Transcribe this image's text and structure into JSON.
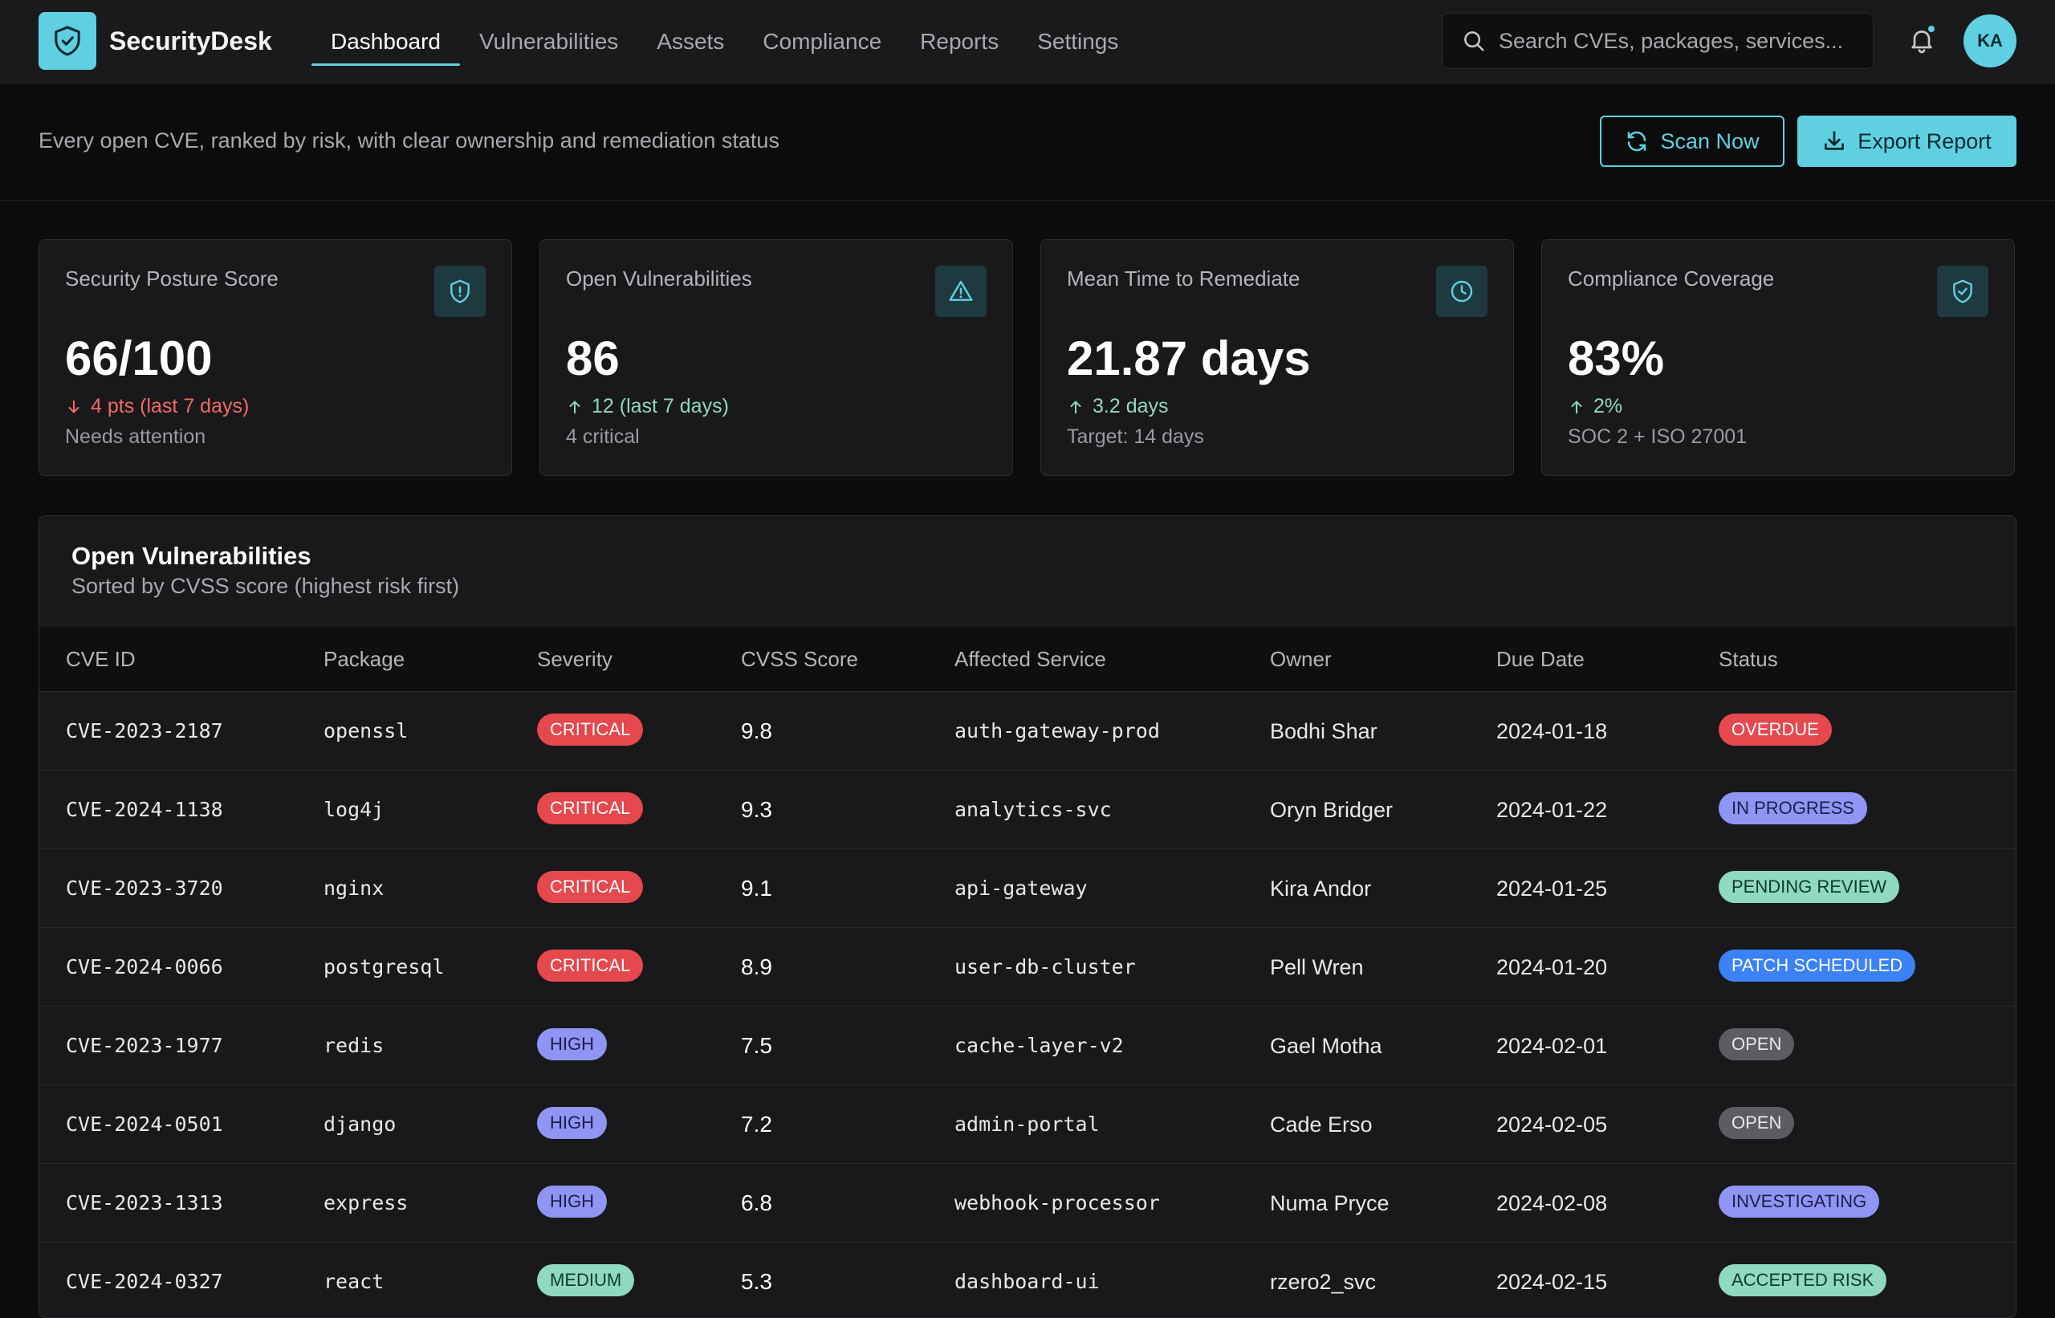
{
  "app": {
    "name": "SecurityDesk"
  },
  "nav": {
    "items": [
      {
        "label": "Dashboard",
        "active": true
      },
      {
        "label": "Vulnerabilities",
        "active": false
      },
      {
        "label": "Assets",
        "active": false
      },
      {
        "label": "Compliance",
        "active": false
      },
      {
        "label": "Reports",
        "active": false
      },
      {
        "label": "Settings",
        "active": false
      }
    ]
  },
  "search": {
    "placeholder": "Search CVEs, packages, services...",
    "value": ""
  },
  "user": {
    "initials": "KA",
    "has_notifications": true
  },
  "header": {
    "subtitle": "Every open CVE, ranked by risk, with clear ownership and remediation status",
    "scan_label": "Scan Now",
    "export_label": "Export Report"
  },
  "kpis": [
    {
      "label": "Security Posture Score",
      "icon": "shield-alert-icon",
      "value": "66/100",
      "delta": "4 pts (last 7 days)",
      "direction": "down",
      "tone": "bad",
      "note": "Needs attention"
    },
    {
      "label": "Open Vulnerabilities",
      "icon": "warning-triangle-icon",
      "value": "86",
      "delta": "12 (last 7 days)",
      "direction": "up",
      "tone": "good",
      "note": "4 critical"
    },
    {
      "label": "Mean Time to Remediate",
      "icon": "clock-icon",
      "value": "21.87 days",
      "delta": "3.2 days",
      "direction": "up",
      "tone": "good",
      "note": "Target: 14 days"
    },
    {
      "label": "Compliance Coverage",
      "icon": "shield-check-icon",
      "value": "83%",
      "delta": "2%",
      "direction": "up",
      "tone": "good",
      "note": "SOC 2 + ISO 27001"
    }
  ],
  "table": {
    "title": "Open Vulnerabilities",
    "subtitle": "Sorted by CVSS score (highest risk first)",
    "columns": [
      "CVE ID",
      "Package",
      "Severity",
      "CVSS Score",
      "Affected Service",
      "Owner",
      "Due Date",
      "Status"
    ],
    "rows": [
      {
        "cve": "CVE-2023-2187",
        "package": "openssl",
        "severity": "CRITICAL",
        "cvss": "9.8",
        "service": "auth-gateway-prod",
        "owner": "Bodhi Shar",
        "due": "2024-01-18",
        "status": "OVERDUE"
      },
      {
        "cve": "CVE-2024-1138",
        "package": "log4j",
        "severity": "CRITICAL",
        "cvss": "9.3",
        "service": "analytics-svc",
        "owner": "Oryn Bridger",
        "due": "2024-01-22",
        "status": "IN PROGRESS"
      },
      {
        "cve": "CVE-2023-3720",
        "package": "nginx",
        "severity": "CRITICAL",
        "cvss": "9.1",
        "service": "api-gateway",
        "owner": "Kira Andor",
        "due": "2024-01-25",
        "status": "PENDING REVIEW"
      },
      {
        "cve": "CVE-2024-0066",
        "package": "postgresql",
        "severity": "CRITICAL",
        "cvss": "8.9",
        "service": "user-db-cluster",
        "owner": "Pell Wren",
        "due": "2024-01-20",
        "status": "PATCH SCHEDULED"
      },
      {
        "cve": "CVE-2023-1977",
        "package": "redis",
        "severity": "HIGH",
        "cvss": "7.5",
        "service": "cache-layer-v2",
        "owner": "Gael Motha",
        "due": "2024-02-01",
        "status": "OPEN"
      },
      {
        "cve": "CVE-2024-0501",
        "package": "django",
        "severity": "HIGH",
        "cvss": "7.2",
        "service": "admin-portal",
        "owner": "Cade Erso",
        "due": "2024-02-05",
        "status": "OPEN"
      },
      {
        "cve": "CVE-2023-1313",
        "package": "express",
        "severity": "HIGH",
        "cvss": "6.8",
        "service": "webhook-processor",
        "owner": "Numa Pryce",
        "due": "2024-02-08",
        "status": "INVESTIGATING"
      },
      {
        "cve": "CVE-2024-0327",
        "package": "react",
        "severity": "MEDIUM",
        "cvss": "5.3",
        "service": "dashboard-ui",
        "owner": "rzero2_svc",
        "due": "2024-02-15",
        "status": "ACCEPTED RISK"
      }
    ]
  },
  "colors": {
    "accent": "#5fd0e2",
    "severity": {
      "CRITICAL": "#e5484d",
      "HIGH": "#8f95f2",
      "MEDIUM": "#8fd9be"
    },
    "status": {
      "OVERDUE": "#e5484d",
      "IN PROGRESS": "#8f95f2",
      "PENDING REVIEW": "#8fd9be",
      "PATCH SCHEDULED": "#3b82f6",
      "OPEN": "#5c5c62",
      "INVESTIGATING": "#8f95f2",
      "ACCEPTED RISK": "#8fd9be"
    }
  }
}
